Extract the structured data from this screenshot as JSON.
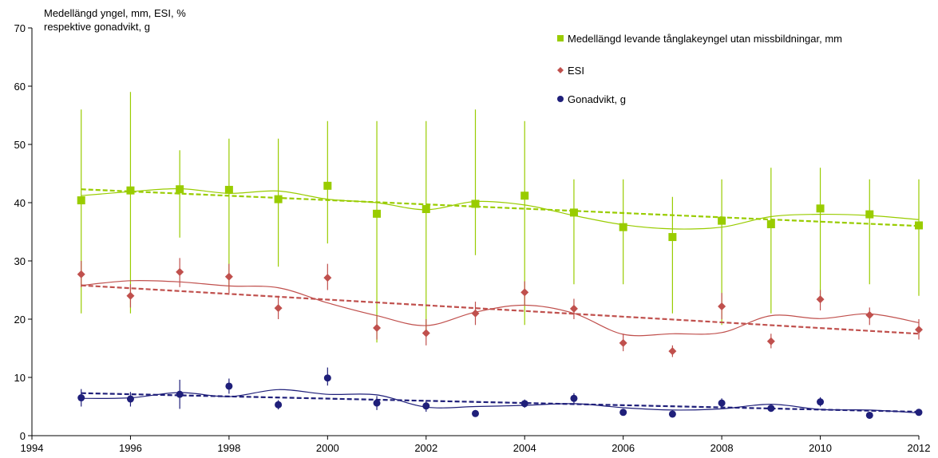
{
  "chart_data": {
    "type": "scatter",
    "title_lines": [
      "Medellängd yngel, mm, ESI, %",
      "respektive gonadvikt,  g"
    ],
    "xlabel": "",
    "ylabel": "",
    "xlim": [
      1994,
      2012
    ],
    "ylim": [
      0,
      70
    ],
    "x_ticks": [
      1994,
      1996,
      1998,
      2000,
      2002,
      2004,
      2006,
      2008,
      2010,
      2012
    ],
    "y_ticks": [
      0,
      10,
      20,
      30,
      40,
      50,
      60,
      70
    ],
    "legend_position": "top-right",
    "grid": false,
    "series": [
      {
        "name": "Medellängd levande tånglakeyngel utan missbildningar, mm",
        "marker": "square",
        "color": "#99cc00",
        "x": [
          1995,
          1996,
          1997,
          1998,
          1999,
          2000,
          2001,
          2002,
          2003,
          2004,
          2005,
          2006,
          2007,
          2008,
          2009,
          2010,
          2011,
          2012
        ],
        "y": [
          40.4,
          42.1,
          42.3,
          42.2,
          40.6,
          42.9,
          38.1,
          38.9,
          39.8,
          41.2,
          38.3,
          35.8,
          34.1,
          36.9,
          36.3,
          39.0,
          38.0,
          36.1
        ],
        "error_low": [
          21,
          21,
          34,
          25,
          29,
          33,
          16,
          17,
          31,
          19,
          26,
          26,
          21,
          19,
          21,
          23,
          26,
          24
        ],
        "error_high": [
          56,
          59,
          49,
          51,
          51,
          54,
          54,
          54,
          56,
          54,
          44,
          44,
          41,
          44,
          46,
          46,
          44,
          44
        ],
        "smooth": [
          41.2,
          41.9,
          42.4,
          41.6,
          42.0,
          40.6,
          40.0,
          38.8,
          40.2,
          39.6,
          37.8,
          36.2,
          35.5,
          35.8,
          37.6,
          38.0,
          37.8,
          37.1
        ],
        "trend": [
          42.3,
          36.0
        ]
      },
      {
        "name": "ESI",
        "marker": "diamond",
        "color": "#c0504d",
        "x": [
          1995,
          1996,
          1997,
          1998,
          1999,
          2000,
          2001,
          2002,
          2003,
          2004,
          2005,
          2006,
          2007,
          2008,
          2009,
          2010,
          2011,
          2012
        ],
        "y": [
          27.7,
          24.0,
          28.1,
          27.3,
          21.9,
          27.1,
          18.5,
          17.6,
          21.0,
          24.6,
          21.8,
          15.9,
          14.5,
          22.2,
          16.2,
          23.4,
          20.7,
          18.2
        ],
        "error_low": [
          25.5,
          22.0,
          25.5,
          24.5,
          20.0,
          25.0,
          16.5,
          15.5,
          19.0,
          22.5,
          20.0,
          14.5,
          13.5,
          20.0,
          15.0,
          21.5,
          19.0,
          16.5
        ],
        "error_high": [
          30.0,
          26.0,
          30.5,
          29.5,
          24.0,
          29.5,
          20.5,
          20.0,
          23.0,
          26.5,
          23.5,
          17.5,
          15.5,
          24.5,
          17.5,
          25.0,
          22.0,
          20.0
        ],
        "smooth": [
          25.8,
          26.6,
          26.4,
          25.7,
          25.4,
          22.8,
          20.6,
          18.9,
          21.2,
          22.4,
          21.0,
          17.4,
          17.5,
          17.7,
          20.6,
          20.1,
          20.9,
          19.4
        ],
        "trend": [
          25.8,
          17.5
        ]
      },
      {
        "name": "Gonadvikt, g",
        "marker": "circle",
        "color": "#1f1f7a",
        "x": [
          1995,
          1996,
          1997,
          1998,
          1999,
          2000,
          2001,
          2002,
          2003,
          2004,
          2005,
          2006,
          2007,
          2008,
          2009,
          2010,
          2011,
          2012
        ],
        "y": [
          6.5,
          6.3,
          7.1,
          8.5,
          5.3,
          9.9,
          5.6,
          5.1,
          3.8,
          5.5,
          6.4,
          4.0,
          3.7,
          5.6,
          4.7,
          5.8,
          3.5,
          4.0
        ],
        "error_low": [
          5.0,
          5.0,
          4.6,
          7.2,
          4.5,
          8.6,
          4.4,
          4.1,
          3.3,
          4.8,
          5.5,
          3.5,
          3.2,
          4.8,
          4.1,
          5.0,
          3.0,
          3.5
        ],
        "error_high": [
          8.0,
          7.5,
          9.6,
          9.8,
          6.1,
          11.7,
          6.8,
          6.1,
          4.3,
          6.2,
          7.3,
          4.5,
          4.2,
          6.4,
          5.3,
          6.6,
          4.0,
          4.5
        ],
        "smooth": [
          6.4,
          6.5,
          7.4,
          6.7,
          7.9,
          7.1,
          7.0,
          4.9,
          5.0,
          5.2,
          5.5,
          4.8,
          4.4,
          4.6,
          5.4,
          4.5,
          4.4,
          3.9
        ],
        "trend": [
          7.3,
          4.1
        ]
      }
    ]
  }
}
